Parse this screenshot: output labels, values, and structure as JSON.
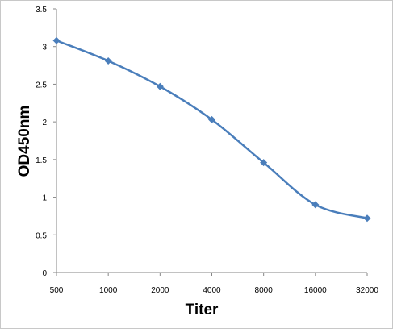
{
  "chart_data": {
    "type": "line",
    "title": "",
    "xlabel": "Titer",
    "ylabel": "OD450nm",
    "categories": [
      "500",
      "1000",
      "2000",
      "4000",
      "8000",
      "16000",
      "32000"
    ],
    "series": [
      {
        "values": [
          3.08,
          2.81,
          2.47,
          2.03,
          1.46,
          0.9,
          0.72
        ]
      }
    ],
    "ylim": [
      0,
      3.5
    ],
    "yticks": [
      "0",
      "0.5",
      "1",
      "1.5",
      "2",
      "2.5",
      "3",
      "3.5"
    ],
    "grid": false,
    "legend": "none",
    "colors": {
      "series": "#4a7ebb",
      "marker": "#4a7ebb",
      "axis": "#868686"
    }
  }
}
